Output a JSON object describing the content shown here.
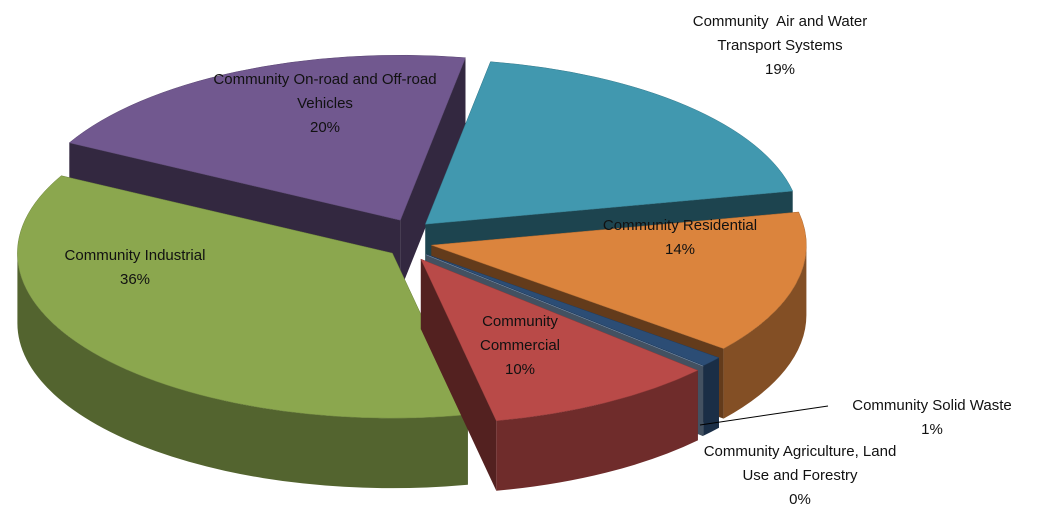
{
  "chart_data": {
    "type": "pie3d",
    "categories": [
      "Community  Air and Water Transport Systems",
      "Community Residential",
      "Community Solid Waste",
      "Community Agriculture, Land Use and Forestry",
      "Community Commercial",
      "Community Industrial",
      "Community On-road and Off-road Vehicles"
    ],
    "values": [
      19,
      14,
      1,
      0,
      10,
      36,
      20
    ],
    "value_labels": [
      "19%",
      "14%",
      "1%",
      "0%",
      "10%",
      "36%",
      "20%"
    ],
    "colors": [
      "#4198af",
      "#db843d",
      "#2c4d75",
      "#95b3d7",
      "#b94a48",
      "#8ba74e",
      "#71588f"
    ]
  }
}
